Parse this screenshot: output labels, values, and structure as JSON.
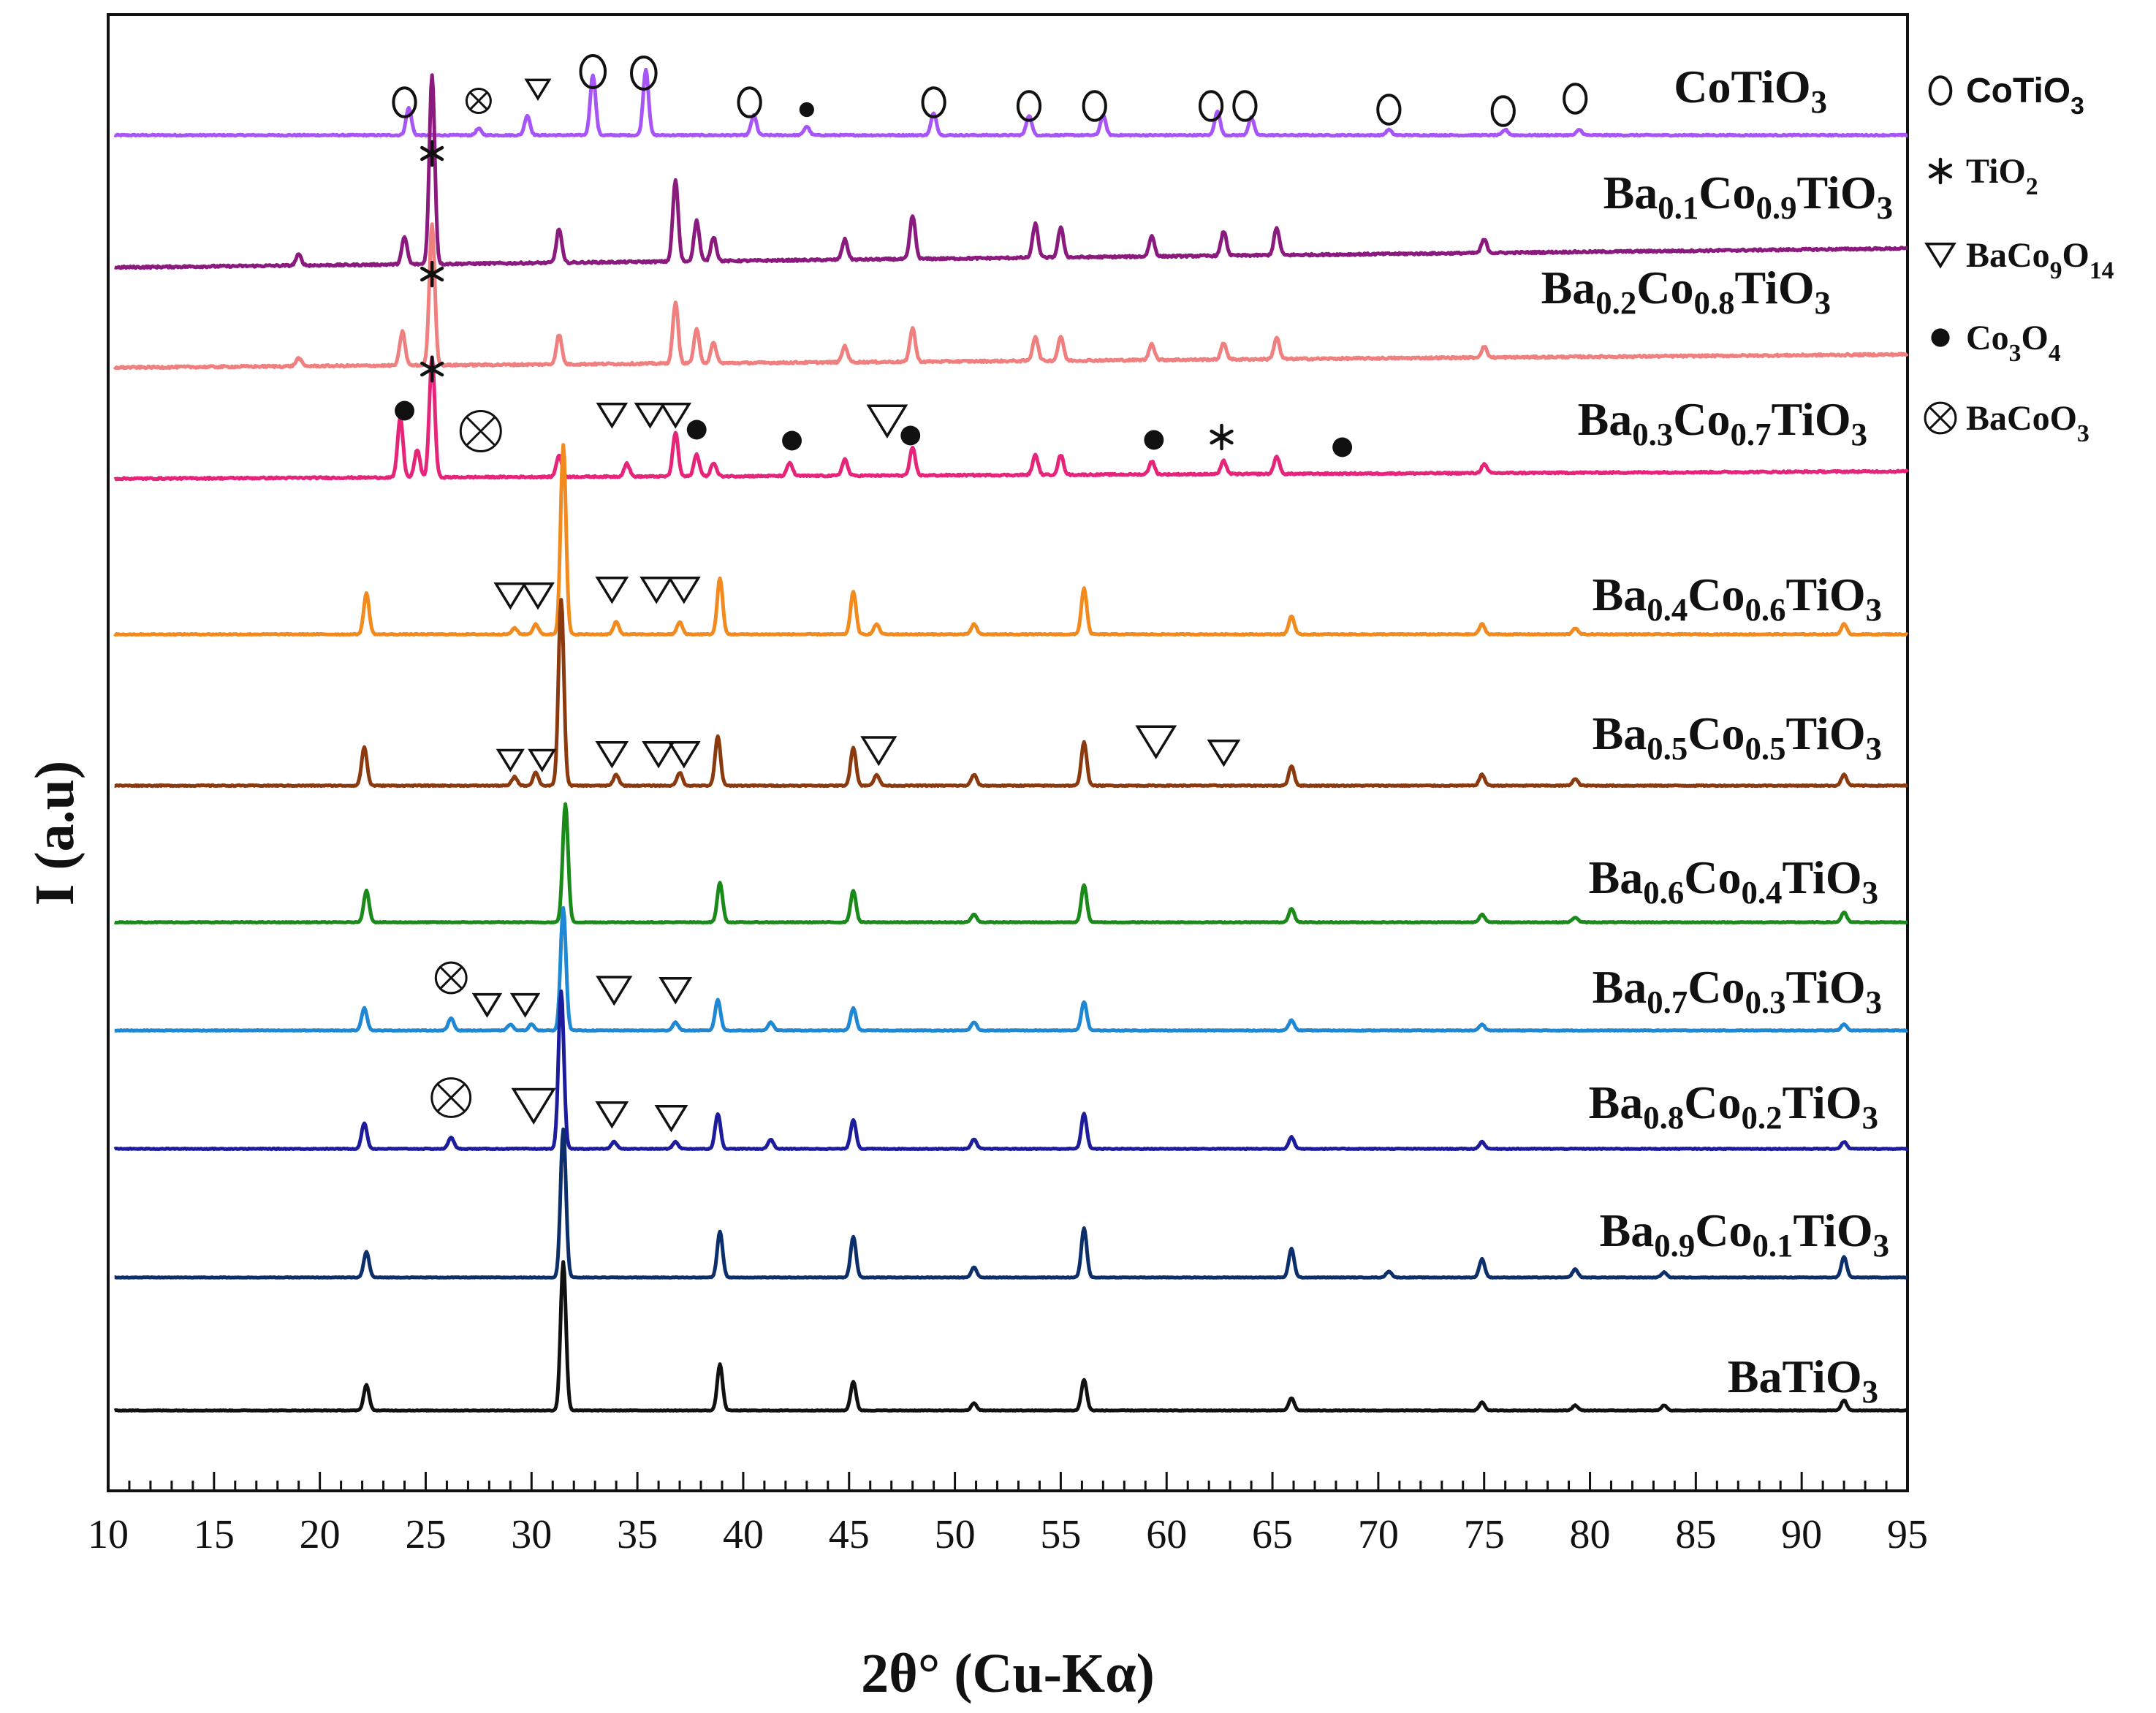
{
  "chart_data": {
    "type": "line",
    "title": "",
    "xlabel": "2θ° (Cu-Kα)",
    "ylabel": "I (a.u)",
    "xlim": [
      10,
      95
    ],
    "x_ticks": [
      10,
      15,
      20,
      25,
      30,
      35,
      40,
      45,
      50,
      55,
      60,
      65,
      70,
      75,
      80,
      85,
      90,
      95
    ],
    "y_units": "arbitrary (stacked, offset patterns)",
    "legend": [
      {
        "symbol": "circle-open",
        "name_main": "CoTiO",
        "name_sub": "3",
        "name_end": ""
      },
      {
        "symbol": "asterisk",
        "name_main": "TiO",
        "name_sub": "2",
        "name_end": ""
      },
      {
        "symbol": "triangle-down",
        "name_main": "BaCo",
        "name_sub": "9",
        "name_end": "O",
        "name_sub2": "14"
      },
      {
        "symbol": "dot",
        "name_main": "Co",
        "name_sub": "3",
        "name_end": "O",
        "name_sub2": "4"
      },
      {
        "symbol": "circle-x",
        "name_main": "BaCoO",
        "name_sub": "3",
        "name_end": ""
      }
    ],
    "series": [
      {
        "name": "CoTiO3",
        "label_parts": [
          "CoTiO",
          "3"
        ],
        "color": "#a855f7",
        "baseline": 0.0,
        "noise": 0.1,
        "peaks": [
          [
            24.2,
            0.25
          ],
          [
            27.5,
            0.06
          ],
          [
            29.8,
            0.18
          ],
          [
            32.9,
            0.55
          ],
          [
            35.4,
            0.6
          ],
          [
            40.5,
            0.18
          ],
          [
            43.0,
            0.08
          ],
          [
            49.0,
            0.2
          ],
          [
            53.5,
            0.18
          ],
          [
            57.0,
            0.18
          ],
          [
            62.4,
            0.22
          ],
          [
            64.0,
            0.16
          ],
          [
            70.5,
            0.05
          ],
          [
            76.0,
            0.05
          ],
          [
            79.5,
            0.05
          ]
        ]
      },
      {
        "name": "Ba0.1Co0.9TiO3",
        "label_parts": [
          "Ba",
          "0.1",
          "Co",
          "0.9",
          "TiO",
          "3"
        ],
        "color": "#8b1a7f",
        "baseline": 0.0,
        "noise": 0.12,
        "peaks": [
          [
            19.0,
            0.08
          ],
          [
            24.0,
            0.2
          ],
          [
            25.3,
            1.4
          ],
          [
            31.3,
            0.25
          ],
          [
            36.8,
            0.6
          ],
          [
            37.8,
            0.3
          ],
          [
            38.6,
            0.18
          ],
          [
            44.8,
            0.15
          ],
          [
            48.0,
            0.32
          ],
          [
            53.8,
            0.25
          ],
          [
            55.0,
            0.22
          ],
          [
            59.3,
            0.15
          ],
          [
            62.7,
            0.18
          ],
          [
            65.2,
            0.2
          ],
          [
            75.0,
            0.1
          ]
        ]
      },
      {
        "name": "Ba0.2Co0.8TiO3",
        "label_parts": [
          "Ba",
          "0.2",
          "Co",
          "0.8",
          "TiO",
          "3"
        ],
        "color": "#f08080",
        "baseline": 0.0,
        "noise": 0.12,
        "peaks": [
          [
            19.0,
            0.06
          ],
          [
            23.9,
            0.25
          ],
          [
            25.3,
            1.05
          ],
          [
            31.3,
            0.22
          ],
          [
            36.8,
            0.45
          ],
          [
            37.8,
            0.25
          ],
          [
            38.6,
            0.15
          ],
          [
            44.8,
            0.12
          ],
          [
            48.0,
            0.25
          ],
          [
            53.8,
            0.18
          ],
          [
            55.0,
            0.18
          ],
          [
            59.3,
            0.12
          ],
          [
            62.7,
            0.12
          ],
          [
            65.2,
            0.16
          ],
          [
            75.0,
            0.08
          ]
        ]
      },
      {
        "name": "Ba0.3Co0.7TiO3",
        "label_parts": [
          "Ba",
          "0.3",
          "Co",
          "0.7",
          "TiO",
          "3"
        ],
        "color": "#e6257a",
        "baseline": 0.0,
        "noise": 0.12,
        "peaks": [
          [
            23.8,
            0.55
          ],
          [
            24.6,
            0.25
          ],
          [
            25.3,
            1.1
          ],
          [
            31.3,
            0.2
          ],
          [
            34.5,
            0.12
          ],
          [
            36.8,
            0.4
          ],
          [
            37.8,
            0.2
          ],
          [
            38.6,
            0.12
          ],
          [
            42.2,
            0.12
          ],
          [
            44.8,
            0.15
          ],
          [
            48.0,
            0.25
          ],
          [
            53.8,
            0.18
          ],
          [
            55.0,
            0.18
          ],
          [
            59.3,
            0.12
          ],
          [
            62.7,
            0.12
          ],
          [
            65.2,
            0.16
          ],
          [
            75.0,
            0.08
          ]
        ]
      },
      {
        "name": "Ba0.4Co0.6TiO3",
        "label_parts": [
          "Ba",
          "0.4",
          "Co",
          "0.6",
          "TiO",
          "3"
        ],
        "color": "#f28a1e",
        "baseline": 0.0,
        "noise": 0.08,
        "peaks": [
          [
            22.2,
            0.4
          ],
          [
            29.2,
            0.06
          ],
          [
            30.2,
            0.1
          ],
          [
            31.5,
            1.85
          ],
          [
            34.0,
            0.12
          ],
          [
            37.0,
            0.12
          ],
          [
            38.9,
            0.55
          ],
          [
            45.2,
            0.42
          ],
          [
            46.3,
            0.1
          ],
          [
            50.9,
            0.1
          ],
          [
            56.1,
            0.45
          ],
          [
            65.9,
            0.18
          ],
          [
            74.9,
            0.1
          ],
          [
            79.3,
            0.06
          ],
          [
            92.0,
            0.1
          ]
        ]
      },
      {
        "name": "Ba0.5Co0.5TiO3",
        "label_parts": [
          "Ba",
          "0.5",
          "Co",
          "0.5",
          "TiO",
          "3"
        ],
        "color": "#8b3a0f",
        "baseline": 0.0,
        "noise": 0.08,
        "peaks": [
          [
            22.1,
            0.35
          ],
          [
            29.2,
            0.08
          ],
          [
            30.2,
            0.12
          ],
          [
            31.4,
            1.7
          ],
          [
            34.0,
            0.1
          ],
          [
            37.0,
            0.12
          ],
          [
            38.8,
            0.45
          ],
          [
            45.2,
            0.35
          ],
          [
            46.3,
            0.1
          ],
          [
            50.9,
            0.1
          ],
          [
            56.1,
            0.4
          ],
          [
            65.9,
            0.18
          ],
          [
            74.9,
            0.1
          ],
          [
            79.3,
            0.06
          ],
          [
            92.0,
            0.1
          ]
        ]
      },
      {
        "name": "Ba0.6Co0.4TiO3",
        "label_parts": [
          "Ba",
          "0.6",
          "Co",
          "0.4",
          "TiO",
          "3"
        ],
        "color": "#1a8a1a",
        "baseline": 0.0,
        "noise": 0.06,
        "peaks": [
          [
            22.2,
            0.32
          ],
          [
            31.6,
            1.2
          ],
          [
            38.9,
            0.4
          ],
          [
            45.2,
            0.32
          ],
          [
            50.9,
            0.08
          ],
          [
            56.1,
            0.38
          ],
          [
            65.9,
            0.14
          ],
          [
            74.9,
            0.08
          ],
          [
            79.3,
            0.05
          ],
          [
            92.0,
            0.1
          ]
        ]
      },
      {
        "name": "Ba0.7Co0.3TiO3",
        "label_parts": [
          "Ba",
          "0.7",
          "Co",
          "0.3",
          "TiO",
          "3"
        ],
        "color": "#1e88d4",
        "baseline": 0.0,
        "noise": 0.06,
        "peaks": [
          [
            22.1,
            0.22
          ],
          [
            26.2,
            0.12
          ],
          [
            29.0,
            0.06
          ],
          [
            30.0,
            0.06
          ],
          [
            31.5,
            1.2
          ],
          [
            36.8,
            0.08
          ],
          [
            38.8,
            0.3
          ],
          [
            41.3,
            0.08
          ],
          [
            45.2,
            0.22
          ],
          [
            50.9,
            0.08
          ],
          [
            56.1,
            0.28
          ],
          [
            65.9,
            0.1
          ],
          [
            74.9,
            0.06
          ],
          [
            92.0,
            0.06
          ]
        ]
      },
      {
        "name": "Ba0.8Co0.2TiO3",
        "label_parts": [
          "Ba",
          "0.8",
          "Co",
          "0.2",
          "TiO",
          "3"
        ],
        "color": "#1c1c9c",
        "baseline": 0.0,
        "noise": 0.06,
        "peaks": [
          [
            22.1,
            0.22
          ],
          [
            26.2,
            0.1
          ],
          [
            31.4,
            1.35
          ],
          [
            33.9,
            0.06
          ],
          [
            36.8,
            0.06
          ],
          [
            38.8,
            0.3
          ],
          [
            41.3,
            0.08
          ],
          [
            45.2,
            0.25
          ],
          [
            50.9,
            0.08
          ],
          [
            56.1,
            0.3
          ],
          [
            65.9,
            0.1
          ],
          [
            74.9,
            0.06
          ],
          [
            92.0,
            0.06
          ]
        ]
      },
      {
        "name": "Ba0.9Co0.1TiO3",
        "label_parts": [
          "Ba",
          "0.9",
          "Co",
          "0.1",
          "TiO",
          "3"
        ],
        "color": "#0c2f6b",
        "baseline": 0.0,
        "noise": 0.05,
        "peaks": [
          [
            22.2,
            0.25
          ],
          [
            31.5,
            1.45
          ],
          [
            38.9,
            0.45
          ],
          [
            45.2,
            0.4
          ],
          [
            50.9,
            0.1
          ],
          [
            56.1,
            0.48
          ],
          [
            65.9,
            0.28
          ],
          [
            70.5,
            0.06
          ],
          [
            74.9,
            0.18
          ],
          [
            79.3,
            0.08
          ],
          [
            83.5,
            0.05
          ],
          [
            92.0,
            0.2
          ]
        ]
      },
      {
        "name": "BaTiO3",
        "label_parts": [
          "BaTiO",
          "3"
        ],
        "color": "#111111",
        "baseline": 0.0,
        "noise": 0.05,
        "peaks": [
          [
            22.2,
            0.25
          ],
          [
            31.5,
            1.45
          ],
          [
            38.9,
            0.45
          ],
          [
            45.2,
            0.28
          ],
          [
            50.9,
            0.07
          ],
          [
            56.1,
            0.3
          ],
          [
            65.9,
            0.12
          ],
          [
            74.9,
            0.08
          ],
          [
            79.3,
            0.05
          ],
          [
            83.5,
            0.05
          ],
          [
            92.0,
            0.1
          ]
        ]
      }
    ],
    "markers": [
      {
        "series": "CoTiO3",
        "symbol": "circle-open",
        "x": [
          24.0,
          32.9,
          35.3,
          40.3,
          49.0,
          53.5,
          56.6,
          62.1,
          63.7,
          70.5,
          75.9,
          79.3
        ]
      },
      {
        "series": "CoTiO3",
        "symbol": "circle-x",
        "x": [
          27.5
        ]
      },
      {
        "series": "CoTiO3",
        "symbol": "triangle-down",
        "x": [
          30.3
        ]
      },
      {
        "series": "CoTiO3",
        "symbol": "dot",
        "x": [
          43.0
        ]
      },
      {
        "series": "Ba0.1Co0.9TiO3",
        "symbol": "asterisk",
        "x": [
          25.3
        ]
      },
      {
        "series": "Ba0.2Co0.8TiO3",
        "symbol": "asterisk",
        "x": [
          25.3
        ]
      },
      {
        "series": "Ba0.3Co0.7TiO3",
        "symbol": "dot",
        "x": [
          24.0,
          37.8,
          42.3,
          47.9,
          59.4,
          68.3
        ]
      },
      {
        "series": "Ba0.3Co0.7TiO3",
        "symbol": "asterisk",
        "x": [
          25.3,
          62.6
        ]
      },
      {
        "series": "Ba0.3Co0.7TiO3",
        "symbol": "circle-x",
        "x": [
          27.6
        ]
      },
      {
        "series": "Ba0.3Co0.7TiO3",
        "symbol": "triangle-down",
        "x": [
          33.8,
          35.6,
          36.8,
          46.8
        ]
      },
      {
        "series": "Ba0.4Co0.6TiO3",
        "symbol": "triangle-down",
        "x": [
          29.0,
          30.3,
          33.8,
          35.9,
          37.2
        ]
      },
      {
        "series": "Ba0.5Co0.5TiO3",
        "symbol": "triangle-down",
        "x": [
          29.0,
          30.5,
          33.8,
          36.0,
          37.2,
          46.4,
          59.5,
          62.7
        ]
      },
      {
        "series": "Ba0.7Co0.3TiO3",
        "symbol": "circle-x",
        "x": [
          26.2
        ]
      },
      {
        "series": "Ba0.7Co0.3TiO3",
        "symbol": "triangle-down",
        "x": [
          27.9,
          29.7,
          33.9,
          36.8
        ]
      },
      {
        "series": "Ba0.8Co0.2TiO3",
        "symbol": "circle-x",
        "x": [
          26.2
        ]
      },
      {
        "series": "Ba0.8Co0.2TiO3",
        "symbol": "triangle-down",
        "x": [
          30.1,
          33.8,
          36.6
        ]
      }
    ]
  }
}
